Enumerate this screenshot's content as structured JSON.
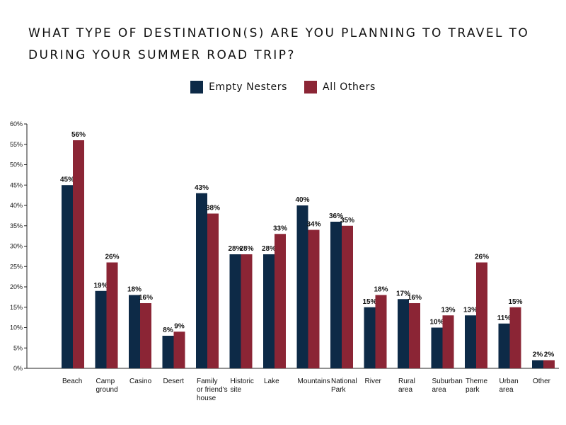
{
  "chart_data": {
    "type": "bar",
    "title_lines": [
      "WHAT TYPE OF DESTINATION(S) ARE YOU PLANNING TO TRAVEL TO",
      "DURING YOUR SUMMER ROAD TRIP?"
    ],
    "categories": [
      [
        "Beach"
      ],
      [
        "Camp",
        "ground"
      ],
      [
        "Casino"
      ],
      [
        "Desert"
      ],
      [
        "Family",
        "or friend's",
        "house"
      ],
      [
        "Historic",
        "site"
      ],
      [
        "Lake"
      ],
      [
        "Mountains"
      ],
      [
        "National",
        "Park"
      ],
      [
        "River"
      ],
      [
        "Rural",
        "area"
      ],
      [
        "Suburban",
        "area"
      ],
      [
        "Theme",
        "park"
      ],
      [
        "Urban",
        "area"
      ],
      [
        "Other"
      ]
    ],
    "series": [
      {
        "name": "Empty Nesters",
        "color": "#0d2a47",
        "values": [
          45,
          19,
          18,
          8,
          43,
          28,
          28,
          40,
          36,
          15,
          17,
          10,
          13,
          11,
          2
        ],
        "labels": [
          "45%",
          "19%",
          "18%",
          "8%",
          "43%",
          "28%",
          "28%",
          "40%",
          "36%",
          "15%",
          "17%",
          "10%",
          "13%",
          "11%",
          "2%"
        ]
      },
      {
        "name": "All Others",
        "color": "#8b2535",
        "values": [
          56,
          26,
          16,
          9,
          38,
          28,
          33,
          34,
          35,
          18,
          16,
          13,
          26,
          15,
          2
        ],
        "labels": [
          "56%",
          "26%",
          "16%",
          "9%",
          "38%",
          "28%",
          "33%",
          "34%",
          "35%",
          "18%",
          "16%",
          "13%",
          "26%",
          "15%",
          "2%"
        ]
      }
    ],
    "y_ticks": [
      "0%",
      "5%",
      "10%",
      "15%",
      "20%",
      "25%",
      "30%",
      "35%",
      "40%",
      "45%",
      "50%",
      "55%",
      "60%"
    ],
    "ylim": [
      0,
      60
    ],
    "legend_position": "top-center",
    "grid": false
  }
}
